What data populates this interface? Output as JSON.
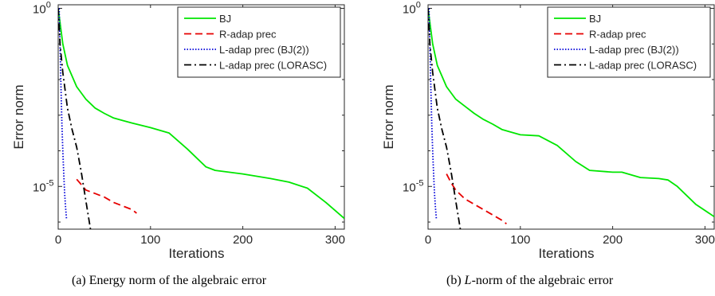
{
  "figure": {
    "captions": [
      {
        "prefix": "(a)  Energy norm of the algebraic error",
        "math": "",
        "suffix": ""
      },
      {
        "prefix": "(b)  ",
        "math": "L",
        "suffix": "-norm of the algebraic error"
      }
    ]
  },
  "chart_data": [
    {
      "type": "line",
      "title": "",
      "xlabel": "Iterations",
      "ylabel": "Error norm",
      "xlim": [
        0,
        310
      ],
      "ylim_log10": [
        -6.2,
        0.1
      ],
      "yscale": "log",
      "x_ticks": [
        0,
        100,
        200,
        300
      ],
      "x_tick_labels": [
        "0",
        "100",
        "200",
        "300"
      ],
      "y_ticks_log10": [
        0,
        -5
      ],
      "y_tick_labels": [
        {
          "base": "10",
          "exp": "0"
        },
        {
          "base": "10",
          "exp": "-5"
        }
      ],
      "grid": false,
      "legend_position": "top-right",
      "series": [
        {
          "name": "BJ",
          "color": "#00e600",
          "dash": "solid",
          "x": [
            0,
            5,
            10,
            20,
            30,
            40,
            50,
            60,
            70,
            80,
            100,
            120,
            140,
            160,
            170,
            200,
            230,
            250,
            270,
            290,
            310
          ],
          "y_log10": [
            0,
            -1.0,
            -1.6,
            -2.2,
            -2.55,
            -2.8,
            -2.95,
            -3.08,
            -3.15,
            -3.22,
            -3.35,
            -3.5,
            -3.95,
            -4.45,
            -4.55,
            -4.65,
            -4.78,
            -4.88,
            -5.05,
            -5.45,
            -5.9
          ]
        },
        {
          "name": "R-adap prec",
          "color": "#e60000",
          "dash": "dashed",
          "x": [
            20,
            25,
            30,
            40,
            50,
            60,
            70,
            80,
            85
          ],
          "y_log10": [
            -4.8,
            -4.95,
            -5.1,
            -5.2,
            -5.3,
            -5.45,
            -5.55,
            -5.65,
            -5.75
          ]
        },
        {
          "name": "L-adap prec (BJ(2))",
          "color": "#0000d9",
          "dash": "dotted",
          "x": [
            1,
            2,
            3,
            4,
            5,
            6,
            7,
            8,
            9
          ],
          "y_log10": [
            0,
            -1.0,
            -2.2,
            -3.2,
            -4.0,
            -4.6,
            -5.2,
            -5.6,
            -5.9
          ]
        },
        {
          "name": "L-adap prec (LORASC)",
          "color": "#000000",
          "dash": "dashdot",
          "x": [
            0,
            2,
            5,
            8,
            10,
            15,
            20,
            25,
            30,
            35
          ],
          "y_log10": [
            0,
            -1.0,
            -1.8,
            -2.4,
            -2.8,
            -3.4,
            -3.9,
            -4.6,
            -5.4,
            -6.2
          ]
        }
      ]
    },
    {
      "type": "line",
      "title": "",
      "xlabel": "Iterations",
      "ylabel": "Error norm",
      "xlim": [
        0,
        310
      ],
      "ylim_log10": [
        -6.2,
        0.1
      ],
      "yscale": "log",
      "x_ticks": [
        0,
        100,
        200,
        300
      ],
      "x_tick_labels": [
        "0",
        "100",
        "200",
        "300"
      ],
      "y_ticks_log10": [
        0,
        -5
      ],
      "y_tick_labels": [
        {
          "base": "10",
          "exp": "0"
        },
        {
          "base": "10",
          "exp": "-5"
        }
      ],
      "grid": false,
      "legend_position": "top-right",
      "series": [
        {
          "name": "BJ",
          "color": "#00e600",
          "dash": "solid",
          "x": [
            0,
            5,
            10,
            20,
            30,
            40,
            50,
            60,
            70,
            80,
            100,
            120,
            140,
            160,
            175,
            200,
            210,
            230,
            250,
            260,
            270,
            290,
            310
          ],
          "y_log10": [
            0,
            -1.0,
            -1.6,
            -2.2,
            -2.55,
            -2.75,
            -2.95,
            -3.12,
            -3.25,
            -3.4,
            -3.55,
            -3.58,
            -3.85,
            -4.3,
            -4.55,
            -4.6,
            -4.6,
            -4.75,
            -4.78,
            -4.82,
            -5.0,
            -5.5,
            -5.85
          ]
        },
        {
          "name": "R-adap prec",
          "color": "#e60000",
          "dash": "dashed",
          "x": [
            20,
            25,
            30,
            40,
            50,
            60,
            70,
            80,
            85
          ],
          "y_log10": [
            -4.65,
            -4.9,
            -5.1,
            -5.35,
            -5.5,
            -5.65,
            -5.8,
            -5.95,
            -6.05
          ]
        },
        {
          "name": "L-adap prec (BJ(2))",
          "color": "#0000d9",
          "dash": "dotted",
          "x": [
            1,
            2,
            3,
            4,
            5,
            6,
            7,
            8,
            9
          ],
          "y_log10": [
            0,
            -1.0,
            -2.2,
            -3.2,
            -4.0,
            -4.6,
            -5.2,
            -5.6,
            -5.9
          ]
        },
        {
          "name": "L-adap prec (LORASC)",
          "color": "#000000",
          "dash": "dashdot",
          "x": [
            0,
            2,
            5,
            8,
            10,
            15,
            20,
            25,
            30,
            35
          ],
          "y_log10": [
            0,
            -1.0,
            -1.8,
            -2.4,
            -2.8,
            -3.4,
            -3.9,
            -4.6,
            -5.4,
            -6.2
          ]
        }
      ]
    }
  ]
}
